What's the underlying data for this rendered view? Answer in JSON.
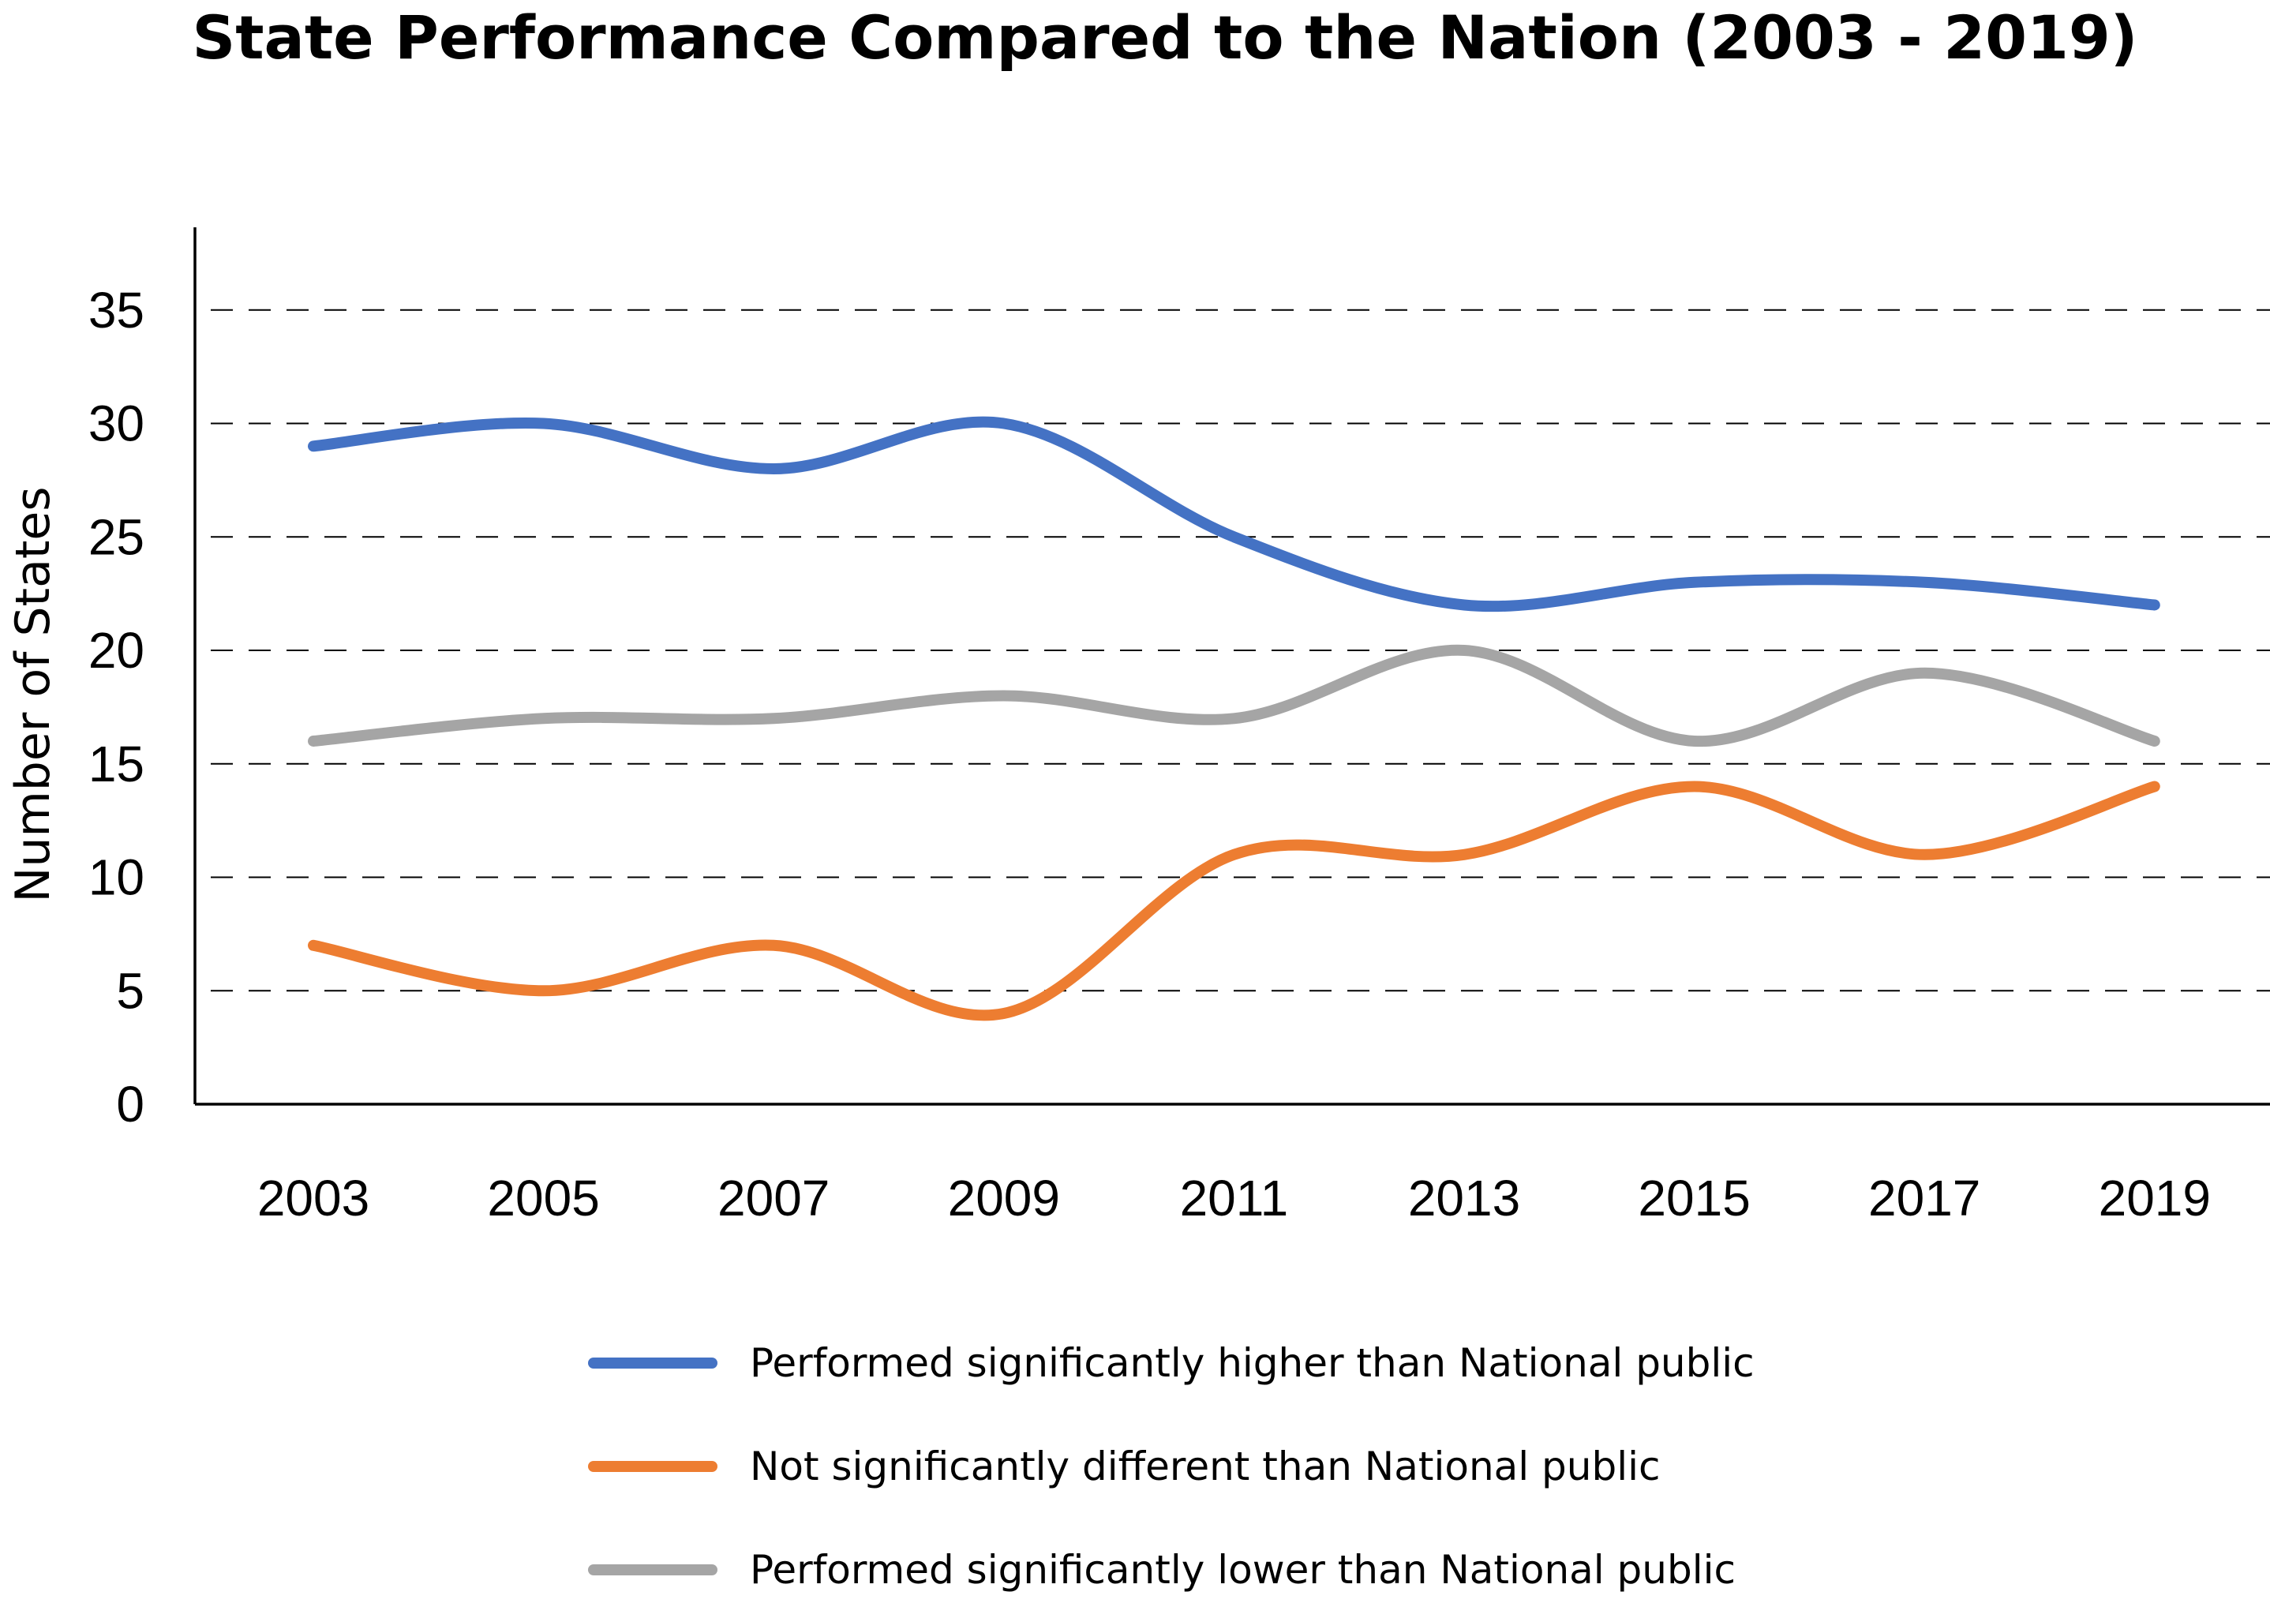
{
  "chart_data": {
    "type": "line",
    "title": "State Performance Compared to the Nation (2003 - 2019)",
    "xlabel": "",
    "ylabel": "Number of States",
    "categories": [
      "2003",
      "2005",
      "2007",
      "2009",
      "2011",
      "2013",
      "2015",
      "2017",
      "2019"
    ],
    "ylim": [
      0,
      38
    ],
    "yticks": [
      0,
      5,
      10,
      15,
      20,
      25,
      30,
      35
    ],
    "grid": true,
    "legend_position": "bottom",
    "series": [
      {
        "name": "Performed significantly higher than National public",
        "color": "#4472C4",
        "values": [
          29,
          30,
          28,
          30,
          25,
          22,
          23,
          23,
          22
        ]
      },
      {
        "name": "Not significantly different than National public",
        "color": "#ED7D31",
        "values": [
          7,
          5,
          7,
          4,
          11,
          11,
          14,
          11,
          14
        ]
      },
      {
        "name": "Performed significantly lower than National public",
        "color": "#A5A5A5",
        "values": [
          16,
          17,
          17,
          18,
          17,
          20,
          16,
          19,
          16
        ]
      }
    ]
  }
}
